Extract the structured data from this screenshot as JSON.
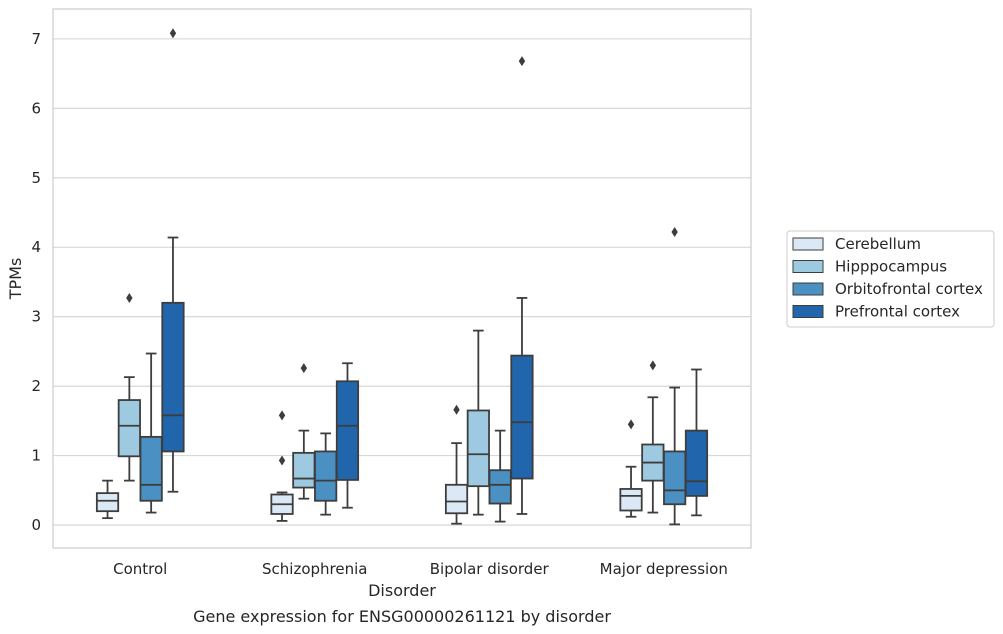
{
  "chart_data": {
    "type": "box",
    "caption": "Gene expression for ENSG00000261121 by disorder",
    "xlabel": "Disorder",
    "ylabel": "TPMs",
    "ylim": [
      -0.33,
      7.43
    ],
    "yticks": [
      0,
      1,
      2,
      3,
      4,
      5,
      6,
      7
    ],
    "grid": "horizontal",
    "legend_position": "right",
    "categories": [
      "Control",
      "Schizophrenia",
      "Bipolar disorder",
      "Major depression"
    ],
    "series": [
      {
        "name": "Cerebellum",
        "color": "#dbe9f6",
        "boxes": [
          {
            "whisker_low": 0.1,
            "q1": 0.2,
            "median": 0.35,
            "q3": 0.46,
            "whisker_high": 0.64,
            "outliers": []
          },
          {
            "whisker_low": 0.06,
            "q1": 0.16,
            "median": 0.3,
            "q3": 0.44,
            "whisker_high": 0.47,
            "outliers": [
              0.93,
              1.58
            ]
          },
          {
            "whisker_low": 0.02,
            "q1": 0.17,
            "median": 0.34,
            "q3": 0.58,
            "whisker_high": 1.18,
            "outliers": [
              1.66
            ]
          },
          {
            "whisker_low": 0.12,
            "q1": 0.21,
            "median": 0.42,
            "q3": 0.52,
            "whisker_high": 0.84,
            "outliers": [
              1.45
            ]
          }
        ]
      },
      {
        "name": "Hipppocampus",
        "color": "#9ecae1",
        "boxes": [
          {
            "whisker_low": 0.64,
            "q1": 0.99,
            "median": 1.43,
            "q3": 1.8,
            "whisker_high": 2.13,
            "outliers": [
              3.27
            ]
          },
          {
            "whisker_low": 0.38,
            "q1": 0.54,
            "median": 0.67,
            "q3": 1.04,
            "whisker_high": 1.36,
            "outliers": [
              2.26
            ]
          },
          {
            "whisker_low": 0.15,
            "q1": 0.56,
            "median": 1.02,
            "q3": 1.65,
            "whisker_high": 2.8,
            "outliers": []
          },
          {
            "whisker_low": 0.18,
            "q1": 0.64,
            "median": 0.9,
            "q3": 1.16,
            "whisker_high": 1.84,
            "outliers": [
              2.3
            ]
          }
        ]
      },
      {
        "name": "Orbitofrontal cortex",
        "color": "#4a90c3",
        "boxes": [
          {
            "whisker_low": 0.18,
            "q1": 0.35,
            "median": 0.58,
            "q3": 1.27,
            "whisker_high": 2.47,
            "outliers": []
          },
          {
            "whisker_low": 0.15,
            "q1": 0.35,
            "median": 0.64,
            "q3": 1.06,
            "whisker_high": 1.32,
            "outliers": []
          },
          {
            "whisker_low": 0.05,
            "q1": 0.31,
            "median": 0.58,
            "q3": 0.79,
            "whisker_high": 1.36,
            "outliers": []
          },
          {
            "whisker_low": 0.01,
            "q1": 0.3,
            "median": 0.5,
            "q3": 1.06,
            "whisker_high": 1.98,
            "outliers": [
              4.22
            ]
          }
        ]
      },
      {
        "name": "Prefrontal cortex",
        "color": "#2166ac",
        "boxes": [
          {
            "whisker_low": 0.48,
            "q1": 1.06,
            "median": 1.58,
            "q3": 3.2,
            "whisker_high": 4.14,
            "outliers": [
              7.08
            ]
          },
          {
            "whisker_low": 0.25,
            "q1": 0.65,
            "median": 1.43,
            "q3": 2.07,
            "whisker_high": 2.33,
            "outliers": []
          },
          {
            "whisker_low": 0.16,
            "q1": 0.67,
            "median": 1.48,
            "q3": 2.44,
            "whisker_high": 3.27,
            "outliers": [
              6.68
            ]
          },
          {
            "whisker_low": 0.14,
            "q1": 0.42,
            "median": 0.63,
            "q3": 1.36,
            "whisker_high": 2.24,
            "outliers": []
          }
        ]
      }
    ]
  }
}
